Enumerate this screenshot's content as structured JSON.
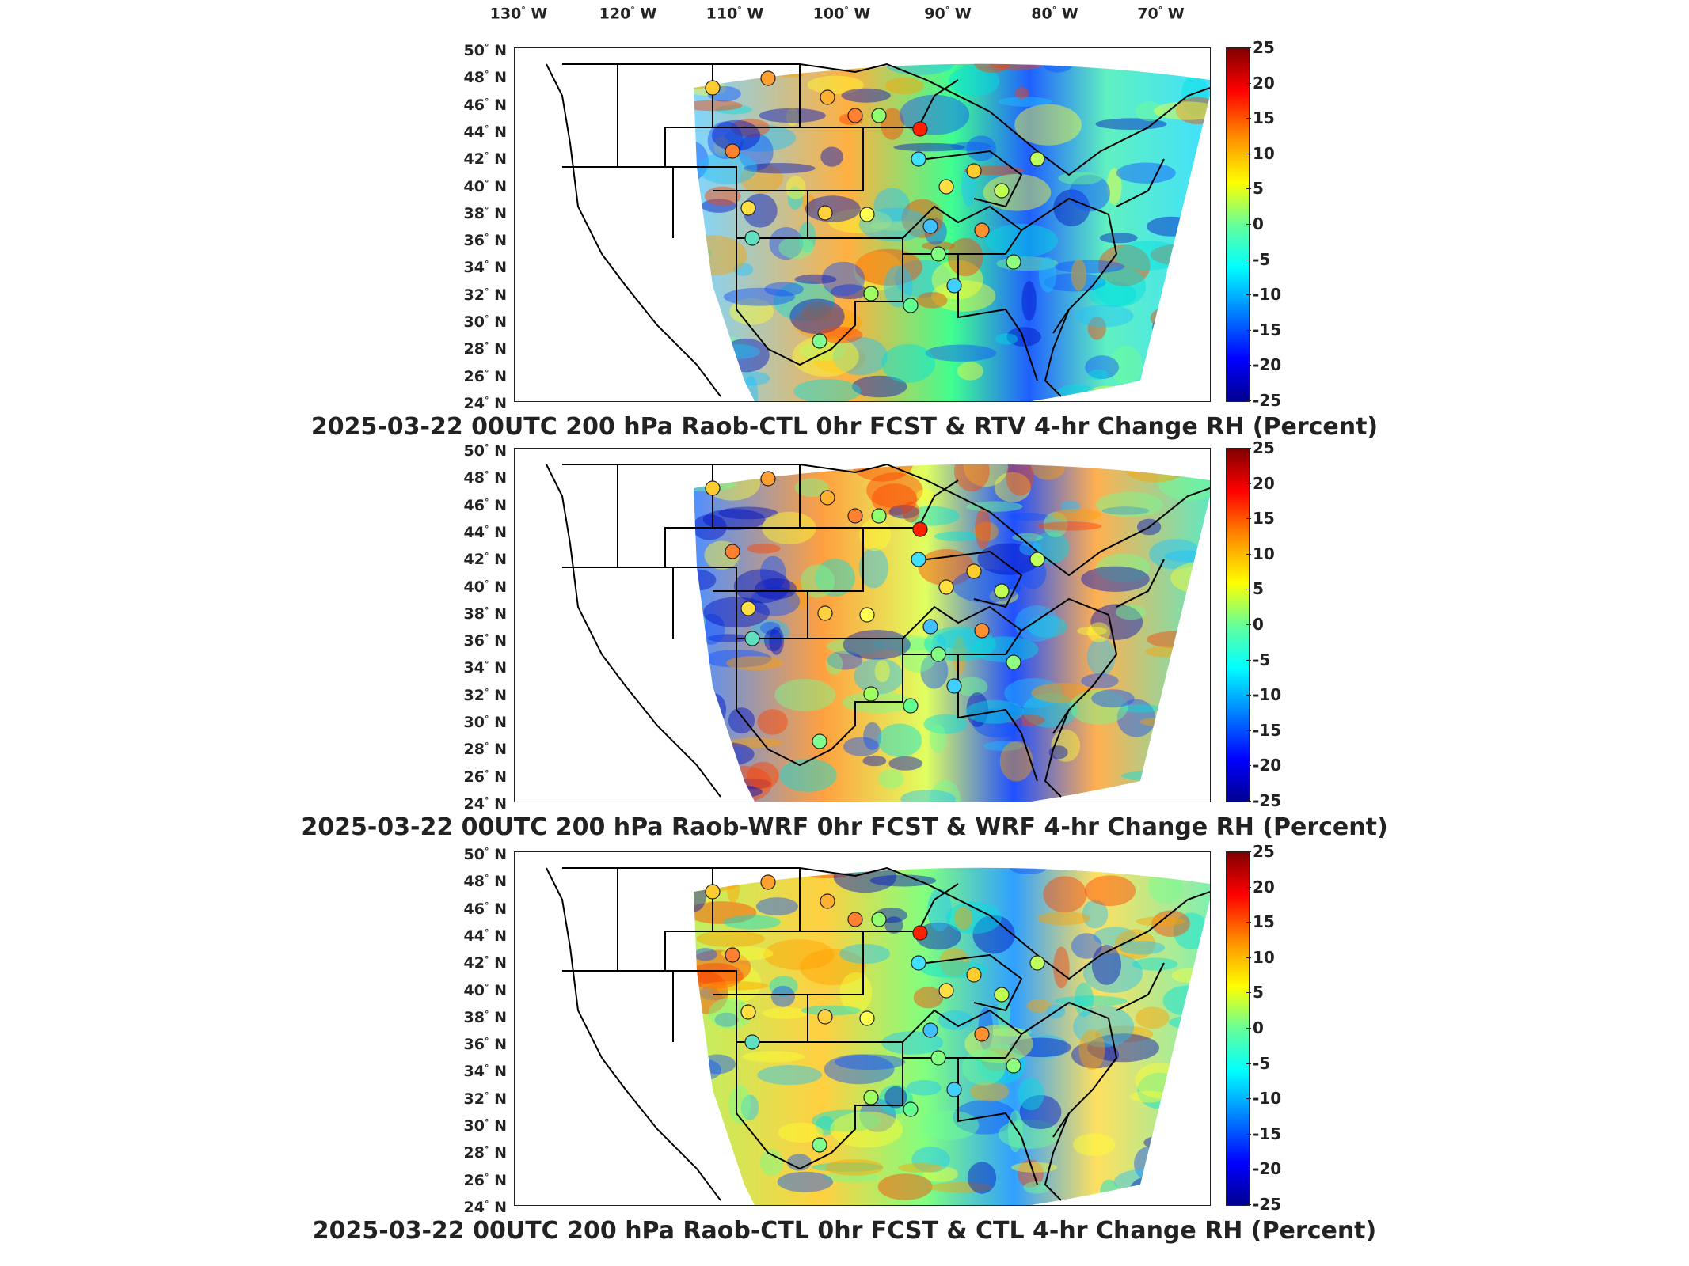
{
  "lon_labels": [
    {
      "value": "130",
      "unit": "W",
      "deg_symbol": "°"
    },
    {
      "value": "120",
      "unit": "W",
      "deg_symbol": "°"
    },
    {
      "value": "110",
      "unit": "W",
      "deg_symbol": "°"
    },
    {
      "value": "100",
      "unit": "W",
      "deg_symbol": "°"
    },
    {
      "value": "90",
      "unit": "W",
      "deg_symbol": "°"
    },
    {
      "value": "80",
      "unit": "W",
      "deg_symbol": "°"
    },
    {
      "value": "70",
      "unit": "W",
      "deg_symbol": "°"
    }
  ],
  "lat_labels": [
    "50",
    "48",
    "46",
    "44",
    "42",
    "40",
    "38",
    "36",
    "34",
    "32",
    "30",
    "28",
    "26",
    "24"
  ],
  "lat_unit": "N",
  "colorbar": {
    "ticks": [
      "25",
      "20",
      "15",
      "10",
      "5",
      "0",
      "-5",
      "-10",
      "-15",
      "-20",
      "-25"
    ],
    "colors": [
      "#800000",
      "#ff0000",
      "#ff8c00",
      "#ffff00",
      "#66ff99",
      "#00ffff",
      "#0080ff",
      "#0000ff",
      "#00008f"
    ]
  },
  "panels": [
    {
      "title": "2025-03-22 00UTC 200 hPa Raob-CTL 0hr FCST & RTV 4-hr Change RH (Percent)",
      "field_tint": "#40d8ff"
    },
    {
      "title": "2025-03-22 00UTC 200 hPa Raob-WRF 0hr FCST & WRF 4-hr Change RH (Percent)",
      "field_tint": "#a0e860"
    },
    {
      "title": "2025-03-22 00UTC 200 hPa Raob-CTL 0hr FCST & CTL 4-hr Change RH (Percent)",
      "field_tint": "#80e8a0"
    }
  ]
}
